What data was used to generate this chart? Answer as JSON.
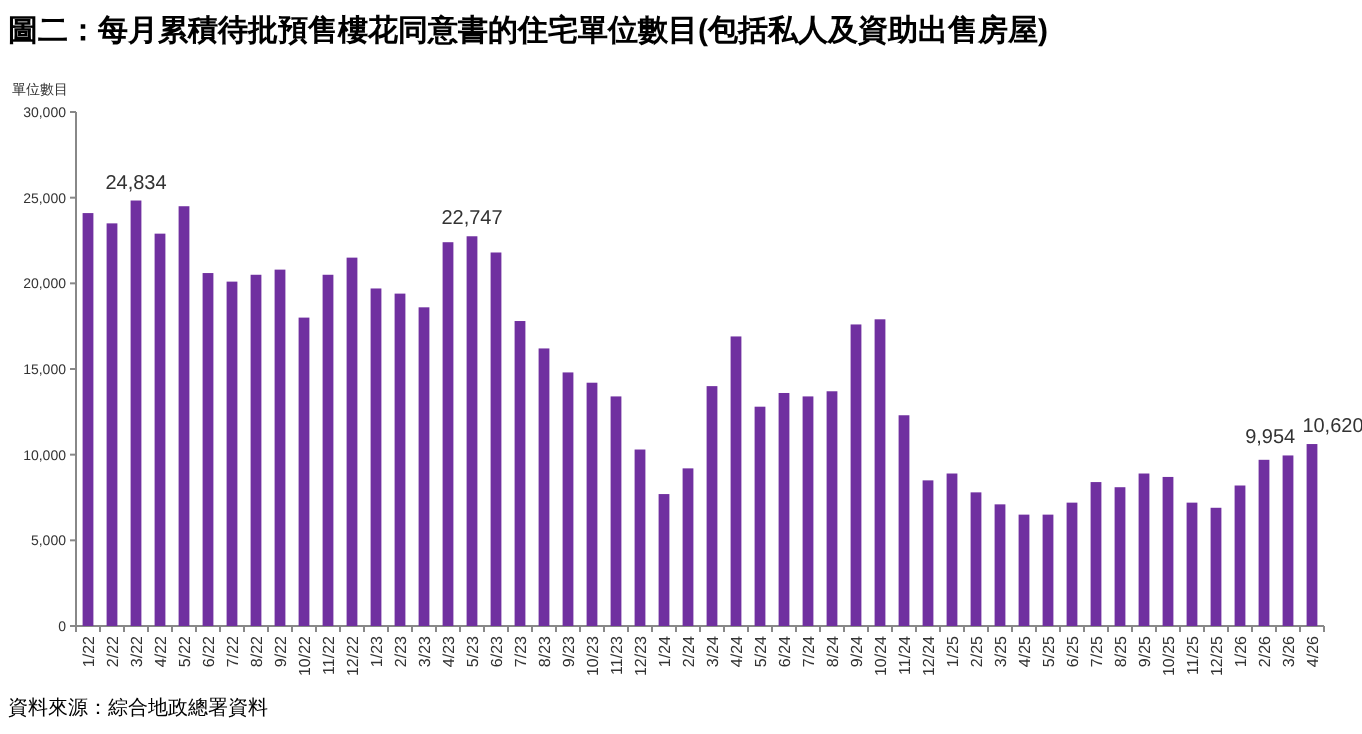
{
  "chart_data": {
    "type": "bar",
    "title": "圖二：每月累積待批預售樓花同意書的住宅單位數目(包括私人及資助出售房屋)",
    "ylabel": "單位數目",
    "categories": [
      "1/22",
      "2/22",
      "3/22",
      "4/22",
      "5/22",
      "6/22",
      "7/22",
      "8/22",
      "9/22",
      "10/22",
      "11/22",
      "12/22",
      "1/23",
      "2/23",
      "3/23",
      "4/23",
      "5/23",
      "6/23",
      "7/23",
      "8/23",
      "9/23",
      "10/23",
      "11/23",
      "12/23",
      "1/24",
      "2/24",
      "3/24",
      "4/24",
      "5/24",
      "6/24",
      "7/24",
      "8/24",
      "9/24",
      "10/24",
      "11/24",
      "12/24",
      "1/25",
      "2/25",
      "3/25",
      "4/25",
      "5/25",
      "6/25",
      "7/25",
      "8/25",
      "9/25",
      "10/25",
      "11/25",
      "12/25",
      "1/26",
      "2/26",
      "3/26",
      "4/26"
    ],
    "values": [
      24100,
      23500,
      24834,
      22900,
      24500,
      20600,
      20100,
      20500,
      20800,
      18000,
      20500,
      21500,
      19700,
      19400,
      18600,
      22400,
      22747,
      21800,
      17800,
      16200,
      14800,
      14200,
      13400,
      10300,
      7700,
      9200,
      14000,
      16900,
      12800,
      13600,
      13400,
      13700,
      17600,
      17900,
      12300,
      8500,
      8900,
      7800,
      7100,
      6500,
      6500,
      7200,
      8400,
      8100,
      8900,
      8700,
      7200,
      6900,
      8200,
      9700,
      9954,
      10620
    ],
    "value_labels": [
      null,
      null,
      "24,834",
      null,
      null,
      null,
      null,
      null,
      null,
      null,
      null,
      null,
      null,
      null,
      null,
      null,
      "22,747",
      null,
      null,
      null,
      null,
      null,
      null,
      null,
      null,
      null,
      null,
      null,
      null,
      null,
      null,
      null,
      null,
      null,
      null,
      null,
      null,
      null,
      null,
      null,
      null,
      null,
      null,
      null,
      null,
      null,
      null,
      null,
      null,
      null,
      "9,954",
      "10,620"
    ],
    "color": "#7030a0",
    "ylim": [
      0,
      30000
    ],
    "yticks": [
      {
        "value": 0,
        "label": "0"
      },
      {
        "value": 5000,
        "label": "5,000"
      },
      {
        "value": 10000,
        "label": "10,000"
      },
      {
        "value": 15000,
        "label": "15,000"
      },
      {
        "value": 20000,
        "label": "20,000"
      },
      {
        "value": 25000,
        "label": "25,000"
      },
      {
        "value": 30000,
        "label": "30,000"
      }
    ],
    "grid": false,
    "annotations": [
      "資料來源：綜合地政總署資料"
    ]
  }
}
